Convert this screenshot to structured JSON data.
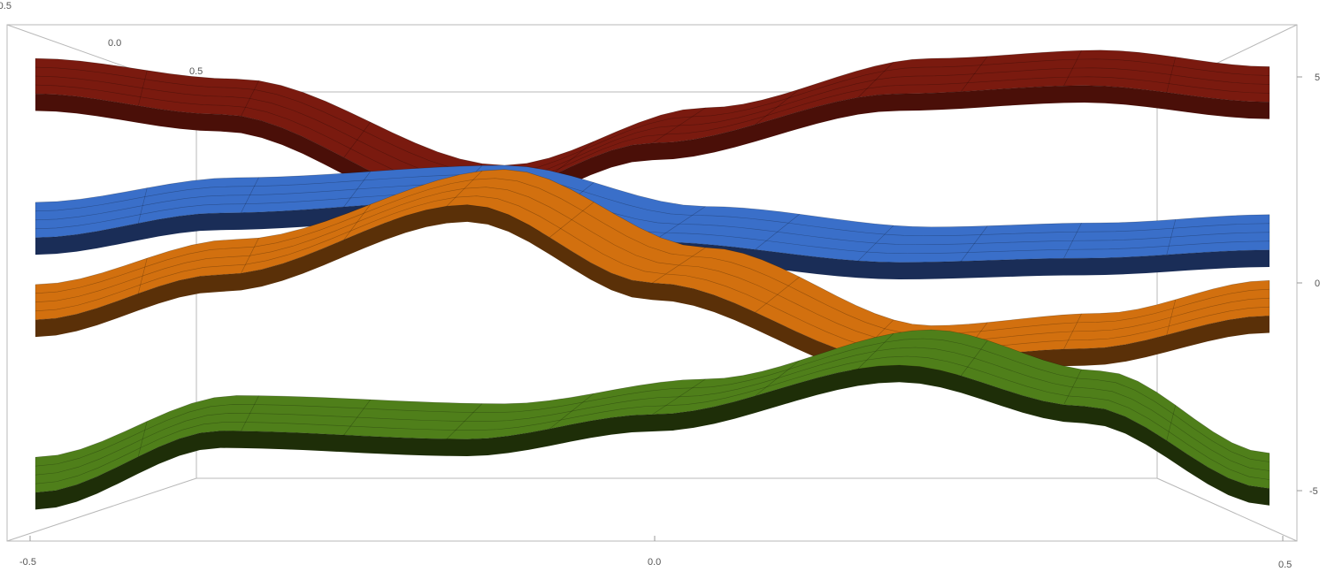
{
  "chart_data": {
    "type": "surface3d",
    "title": "",
    "xlabel": "",
    "ylabel": "",
    "zlabel": "",
    "x_range": [
      -0.5,
      0.5
    ],
    "y_range": [
      -0.5,
      0.5
    ],
    "z_range": [
      -6,
      6
    ],
    "x_ticks": [
      "-0.5",
      "0.0",
      "0.5"
    ],
    "y_ticks": [
      "-0.5",
      "0.0",
      "0.5"
    ],
    "z_ticks": [
      "5",
      "0",
      "-5"
    ],
    "grid": false,
    "series": [
      {
        "color": "#7a1a0f",
        "underside_color": "#4a0f08",
        "profile": [
          [
            -0.5,
            4.6
          ],
          [
            -0.35,
            4.1
          ],
          [
            -0.15,
            2.0
          ],
          [
            0.0,
            3.4
          ],
          [
            0.2,
            4.6
          ],
          [
            0.35,
            4.8
          ],
          [
            0.5,
            4.4
          ]
        ]
      },
      {
        "color": "#3a6fc9",
        "underside_color": "#1a2d57",
        "profile": [
          [
            -0.5,
            1.1
          ],
          [
            -0.35,
            1.7
          ],
          [
            -0.15,
            2.0
          ],
          [
            0.0,
            1.0
          ],
          [
            0.2,
            0.5
          ],
          [
            0.35,
            0.6
          ],
          [
            0.5,
            0.8
          ]
        ]
      },
      {
        "color": "#d2700f",
        "underside_color": "#5a3008",
        "profile": [
          [
            -0.5,
            -0.9
          ],
          [
            -0.35,
            0.2
          ],
          [
            -0.15,
            1.9
          ],
          [
            0.0,
            0.0
          ],
          [
            0.2,
            -1.9
          ],
          [
            0.35,
            -1.6
          ],
          [
            0.5,
            -0.8
          ]
        ]
      },
      {
        "color": "#4f7f1a",
        "underside_color": "#1e2e08",
        "profile": [
          [
            -0.5,
            -5.1
          ],
          [
            -0.35,
            -3.6
          ],
          [
            -0.15,
            -3.8
          ],
          [
            0.0,
            -3.2
          ],
          [
            0.2,
            -2.0
          ],
          [
            0.35,
            -3.0
          ],
          [
            0.5,
            -5.0
          ]
        ]
      }
    ]
  }
}
